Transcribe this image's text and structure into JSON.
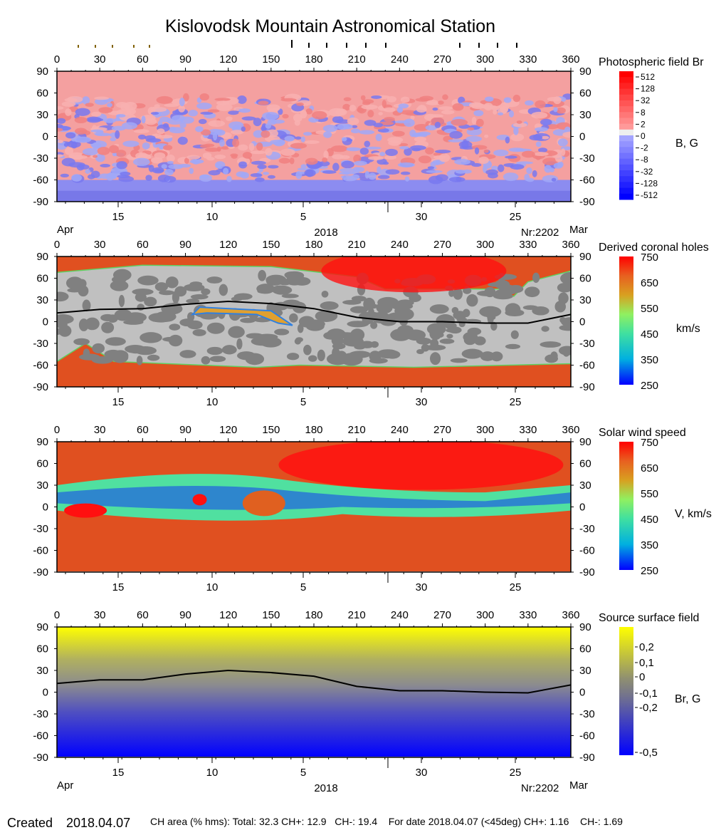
{
  "title": "Kislovodsk Mountain Astronomical Station",
  "chart_data": [
    {
      "type": "heatmap",
      "title": "Photospheric field Br",
      "colorbar_label": "B, G",
      "colorbar_ticks": [
        "512",
        "128",
        "32",
        "8",
        "2",
        "0",
        "-2",
        "-8",
        "-32",
        "-128",
        "-512"
      ],
      "colors": {
        "positive": "#ff0000",
        "negative": "#0000ff",
        "zero": "#eeeeee"
      },
      "xlim": [
        0,
        360
      ],
      "ylim": [
        -90,
        90
      ],
      "x_ticks": [
        "0",
        "30",
        "60",
        "90",
        "120",
        "150",
        "180",
        "210",
        "240",
        "270",
        "300",
        "330",
        "360"
      ],
      "y_ticks": [
        "90",
        "60",
        "30",
        "0",
        "-30",
        "-60",
        "-90"
      ],
      "date_ticks": [
        "15",
        "10",
        "5",
        "30",
        "25"
      ],
      "month_left": "Apr",
      "month_right": "Mar",
      "year": "2018",
      "rotation": "Nr:2202"
    },
    {
      "type": "heatmap",
      "title": "Derived coronal holes",
      "colorbar_label": "km/s",
      "colorbar_ticks": [
        "750",
        "650",
        "550",
        "450",
        "350",
        "250"
      ],
      "xlim": [
        0,
        360
      ],
      "ylim": [
        -90,
        90
      ],
      "x_ticks": [
        "0",
        "30",
        "60",
        "90",
        "120",
        "150",
        "180",
        "210",
        "240",
        "270",
        "300",
        "330",
        "360"
      ],
      "y_ticks": [
        "90",
        "60",
        "30",
        "0",
        "-30",
        "-60",
        "-90"
      ],
      "date_ticks": [
        "15",
        "10",
        "5",
        "30",
        "25"
      ],
      "neutral_line": {
        "lon": [
          0,
          30,
          60,
          90,
          120,
          150,
          180,
          210,
          240,
          270,
          300,
          330,
          360
        ],
        "lat": [
          12,
          17,
          18,
          24,
          28,
          25,
          18,
          6,
          0,
          0,
          -2,
          -2,
          10
        ]
      }
    },
    {
      "type": "heatmap",
      "title": "Solar wind speed",
      "colorbar_label": "V, km/s",
      "colorbar_ticks": [
        "750",
        "650",
        "550",
        "450",
        "350",
        "250"
      ],
      "xlim": [
        0,
        360
      ],
      "ylim": [
        -90,
        90
      ],
      "x_ticks": [
        "0",
        "30",
        "60",
        "90",
        "120",
        "150",
        "180",
        "210",
        "240",
        "270",
        "300",
        "330",
        "360"
      ],
      "y_ticks": [
        "90",
        "60",
        "30",
        "0",
        "-30",
        "-60",
        "-90"
      ],
      "date_ticks": [
        "15",
        "10",
        "5",
        "30",
        "25"
      ]
    },
    {
      "type": "heatmap",
      "title": "Source surface field",
      "colorbar_label": "Br, G",
      "colorbar_ticks": [
        "0,2",
        "0,1",
        "0",
        "-0,1",
        "-0,2",
        "-0,5"
      ],
      "xlim": [
        0,
        360
      ],
      "ylim": [
        -90,
        90
      ],
      "x_ticks": [
        "0",
        "30",
        "60",
        "90",
        "120",
        "150",
        "180",
        "210",
        "240",
        "270",
        "300",
        "330",
        "360"
      ],
      "y_ticks": [
        "90",
        "60",
        "30",
        "0",
        "-30",
        "-60",
        "-90"
      ],
      "date_ticks": [
        "15",
        "10",
        "5",
        "30",
        "25"
      ],
      "month_left": "Apr",
      "month_right": "Mar",
      "year": "2018",
      "rotation": "Nr:2202",
      "neutral_line": {
        "lon": [
          0,
          30,
          60,
          90,
          120,
          150,
          180,
          210,
          240,
          270,
          300,
          330,
          360
        ],
        "lat": [
          12,
          17,
          17,
          25,
          30,
          27,
          22,
          8,
          2,
          2,
          0,
          -1,
          10
        ]
      }
    }
  ],
  "footer": {
    "created_label": "Created",
    "created_date": "2018.04.07",
    "stats": "CH area (% hms): Total: 32.3 CH+: 12.9   CH-: 19.4    For date 2018.04.07 (<45deg) CH+: 1.16    CH-: 1.69"
  }
}
